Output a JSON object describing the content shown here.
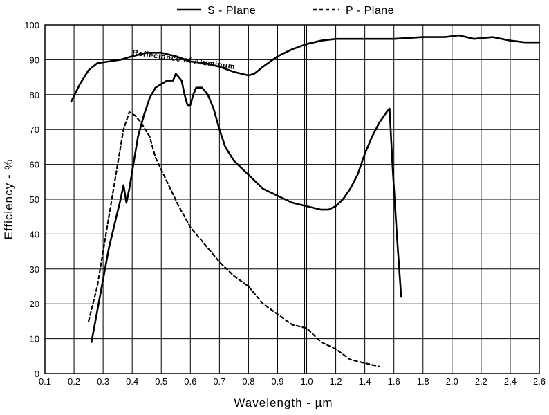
{
  "chart_data": {
    "type": "line",
    "xlabel": "Wavelength - µm",
    "ylabel": "Efficiency - %",
    "xlim": [
      0.1,
      2.6
    ],
    "ylim": [
      0,
      100
    ],
    "x_ticks": [
      "0.1",
      "0.2",
      "0.3",
      "0.4",
      "0.5",
      "0.6",
      "0.7",
      "0.8",
      "0.9",
      "1.0",
      "1.2",
      "1.4",
      "1.6",
      "1.8",
      "2.0",
      "2.2",
      "2.4",
      "2.6"
    ],
    "y_ticks": [
      "0",
      "10",
      "20",
      "30",
      "40",
      "50",
      "60",
      "70",
      "80",
      "90",
      "100"
    ],
    "legend_position": "top-center",
    "grid": true,
    "series": [
      {
        "name": "S - Plane",
        "style": "solid",
        "points": [
          [
            0.26,
            9
          ],
          [
            0.28,
            18
          ],
          [
            0.3,
            27
          ],
          [
            0.32,
            36
          ],
          [
            0.34,
            43
          ],
          [
            0.36,
            50
          ],
          [
            0.37,
            54
          ],
          [
            0.38,
            49
          ],
          [
            0.39,
            53
          ],
          [
            0.4,
            58
          ],
          [
            0.42,
            68
          ],
          [
            0.44,
            74
          ],
          [
            0.46,
            79
          ],
          [
            0.48,
            82
          ],
          [
            0.5,
            83
          ],
          [
            0.52,
            84
          ],
          [
            0.54,
            84
          ],
          [
            0.55,
            86
          ],
          [
            0.57,
            84
          ],
          [
            0.58,
            80
          ],
          [
            0.59,
            77
          ],
          [
            0.6,
            77
          ],
          [
            0.61,
            80
          ],
          [
            0.62,
            82
          ],
          [
            0.64,
            82
          ],
          [
            0.66,
            80
          ],
          [
            0.68,
            76
          ],
          [
            0.7,
            70
          ],
          [
            0.72,
            65
          ],
          [
            0.75,
            61
          ],
          [
            0.8,
            57
          ],
          [
            0.85,
            53
          ],
          [
            0.9,
            51
          ],
          [
            0.95,
            49
          ],
          [
            1.0,
            48
          ],
          [
            1.05,
            47.5
          ],
          [
            1.1,
            47
          ],
          [
            1.15,
            47
          ],
          [
            1.2,
            48
          ],
          [
            1.25,
            50
          ],
          [
            1.3,
            53
          ],
          [
            1.35,
            57
          ],
          [
            1.4,
            63
          ],
          [
            1.45,
            68
          ],
          [
            1.5,
            72
          ],
          [
            1.55,
            75
          ],
          [
            1.57,
            76
          ],
          [
            1.59,
            60
          ],
          [
            1.62,
            40
          ],
          [
            1.65,
            22
          ]
        ]
      },
      {
        "name": "P - Plane",
        "style": "dashed",
        "points": [
          [
            0.25,
            15
          ],
          [
            0.28,
            25
          ],
          [
            0.31,
            40
          ],
          [
            0.33,
            50
          ],
          [
            0.35,
            60
          ],
          [
            0.37,
            70
          ],
          [
            0.39,
            75
          ],
          [
            0.41,
            74
          ],
          [
            0.43,
            72
          ],
          [
            0.46,
            68
          ],
          [
            0.48,
            62
          ],
          [
            0.52,
            55
          ],
          [
            0.56,
            48
          ],
          [
            0.6,
            42
          ],
          [
            0.65,
            37
          ],
          [
            0.7,
            32
          ],
          [
            0.75,
            28
          ],
          [
            0.8,
            25
          ],
          [
            0.85,
            20
          ],
          [
            0.9,
            17
          ],
          [
            0.95,
            14
          ],
          [
            1.0,
            13
          ],
          [
            1.05,
            11
          ],
          [
            1.1,
            9
          ],
          [
            1.2,
            7
          ],
          [
            1.3,
            4
          ],
          [
            1.4,
            3
          ],
          [
            1.5,
            2
          ]
        ]
      },
      {
        "name": "Reflectance of Aluminum",
        "style": "solid",
        "points": [
          [
            0.19,
            78
          ],
          [
            0.22,
            83
          ],
          [
            0.25,
            87
          ],
          [
            0.28,
            89
          ],
          [
            0.32,
            89.5
          ],
          [
            0.36,
            90
          ],
          [
            0.4,
            91
          ],
          [
            0.45,
            92
          ],
          [
            0.5,
            92
          ],
          [
            0.55,
            91
          ],
          [
            0.6,
            89.5
          ],
          [
            0.65,
            89
          ],
          [
            0.7,
            88
          ],
          [
            0.75,
            86.5
          ],
          [
            0.8,
            85.5
          ],
          [
            0.82,
            86
          ],
          [
            0.85,
            88
          ],
          [
            0.9,
            91
          ],
          [
            0.95,
            93
          ],
          [
            1.0,
            94.5
          ],
          [
            1.1,
            95.5
          ],
          [
            1.2,
            96
          ],
          [
            1.4,
            96
          ],
          [
            1.6,
            96
          ],
          [
            1.8,
            96.5
          ],
          [
            1.95,
            96.5
          ],
          [
            2.05,
            97
          ],
          [
            2.15,
            96
          ],
          [
            2.28,
            96.5
          ],
          [
            2.4,
            95.5
          ],
          [
            2.5,
            95
          ],
          [
            2.6,
            95
          ]
        ]
      }
    ],
    "annotations": [
      {
        "text": "Reflectance of Aluminum"
      }
    ]
  }
}
